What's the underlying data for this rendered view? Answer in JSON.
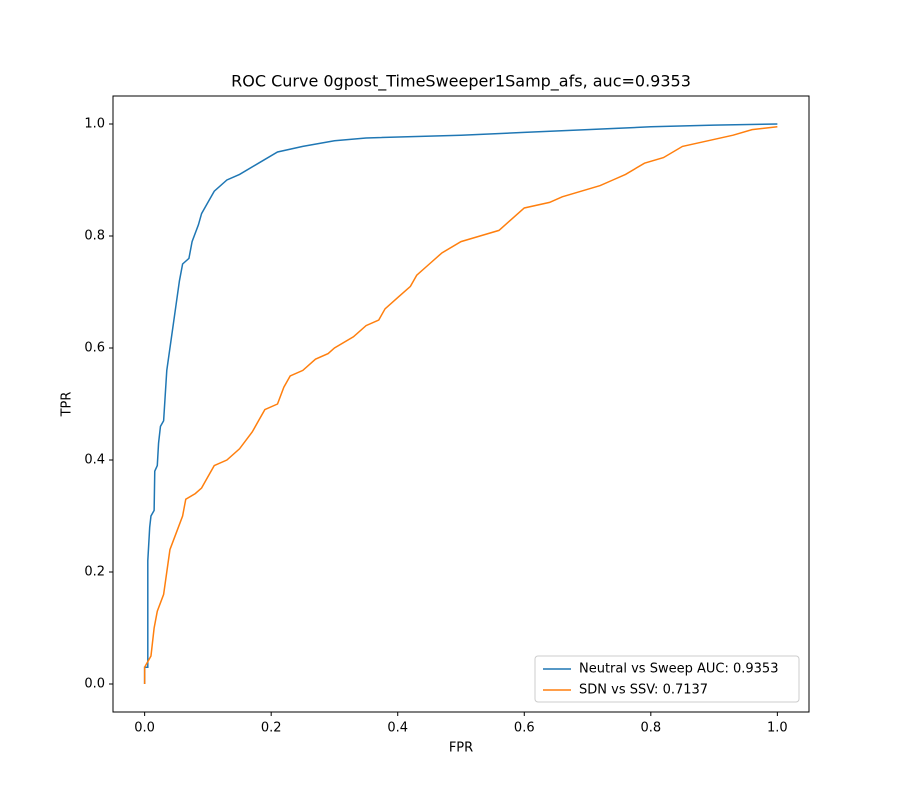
{
  "chart_data": {
    "type": "line",
    "title": "ROC Curve 0gpost_TimeSweeper1Samp_afs, auc=0.9353",
    "x_label": "FPR",
    "y_label": "TPR",
    "xlim": [
      -0.05,
      1.05
    ],
    "ylim": [
      -0.05,
      1.05
    ],
    "xticks": [
      {
        "value": 0,
        "label": "0.0"
      },
      0.2,
      0.4,
      0.6,
      0.8,
      {
        "value": 1,
        "label": "1.0"
      }
    ],
    "yticks": [
      {
        "value": 0,
        "label": "0.0"
      },
      0.2,
      0.4,
      0.6,
      0.8,
      {
        "value": 1,
        "label": "1.0"
      }
    ],
    "grid": false,
    "legend": "lower right",
    "series": [
      {
        "name": "Neutral vs Sweep AUC: 0.9353",
        "color": "#1f77b4",
        "x": [
          0,
          0,
          0.005,
          0.005,
          0.008,
          0.01,
          0.015,
          0.016,
          0.02,
          0.022,
          0.025,
          0.03,
          0.035,
          0.04,
          0.045,
          0.05,
          0.055,
          0.06,
          0.07,
          0.075,
          0.085,
          0.09,
          0.1,
          0.11,
          0.13,
          0.15,
          0.18,
          0.21,
          0.25,
          0.3,
          0.35,
          0.5,
          0.6,
          0.7,
          0.8,
          0.9,
          1
        ],
        "values": [
          0,
          0.03,
          0.03,
          0.22,
          0.28,
          0.3,
          0.31,
          0.38,
          0.39,
          0.43,
          0.46,
          0.47,
          0.56,
          0.6,
          0.64,
          0.68,
          0.72,
          0.75,
          0.76,
          0.79,
          0.82,
          0.84,
          0.86,
          0.88,
          0.9,
          0.91,
          0.93,
          0.95,
          0.96,
          0.97,
          0.975,
          0.98,
          0.985,
          0.99,
          0.995,
          0.998,
          1
        ]
      },
      {
        "name": "SDN vs SSV: 0.7137",
        "color": "#ff7f0e",
        "x": [
          0,
          0,
          0.01,
          0.015,
          0.02,
          0.03,
          0.035,
          0.04,
          0.05,
          0.06,
          0.065,
          0.08,
          0.09,
          0.1,
          0.11,
          0.13,
          0.15,
          0.17,
          0.18,
          0.19,
          0.21,
          0.22,
          0.23,
          0.25,
          0.27,
          0.29,
          0.3,
          0.33,
          0.35,
          0.37,
          0.38,
          0.4,
          0.42,
          0.43,
          0.45,
          0.47,
          0.5,
          0.53,
          0.56,
          0.58,
          0.6,
          0.64,
          0.66,
          0.69,
          0.72,
          0.74,
          0.76,
          0.79,
          0.82,
          0.85,
          0.89,
          0.93,
          0.96,
          1
        ],
        "values": [
          0,
          0.03,
          0.05,
          0.1,
          0.13,
          0.16,
          0.2,
          0.24,
          0.27,
          0.3,
          0.33,
          0.34,
          0.35,
          0.37,
          0.39,
          0.4,
          0.42,
          0.45,
          0.47,
          0.49,
          0.5,
          0.53,
          0.55,
          0.56,
          0.58,
          0.59,
          0.6,
          0.62,
          0.64,
          0.65,
          0.67,
          0.69,
          0.71,
          0.73,
          0.75,
          0.77,
          0.79,
          0.8,
          0.81,
          0.83,
          0.85,
          0.86,
          0.87,
          0.88,
          0.89,
          0.9,
          0.91,
          0.93,
          0.94,
          0.96,
          0.97,
          0.98,
          0.99,
          0.995
        ]
      }
    ]
  }
}
